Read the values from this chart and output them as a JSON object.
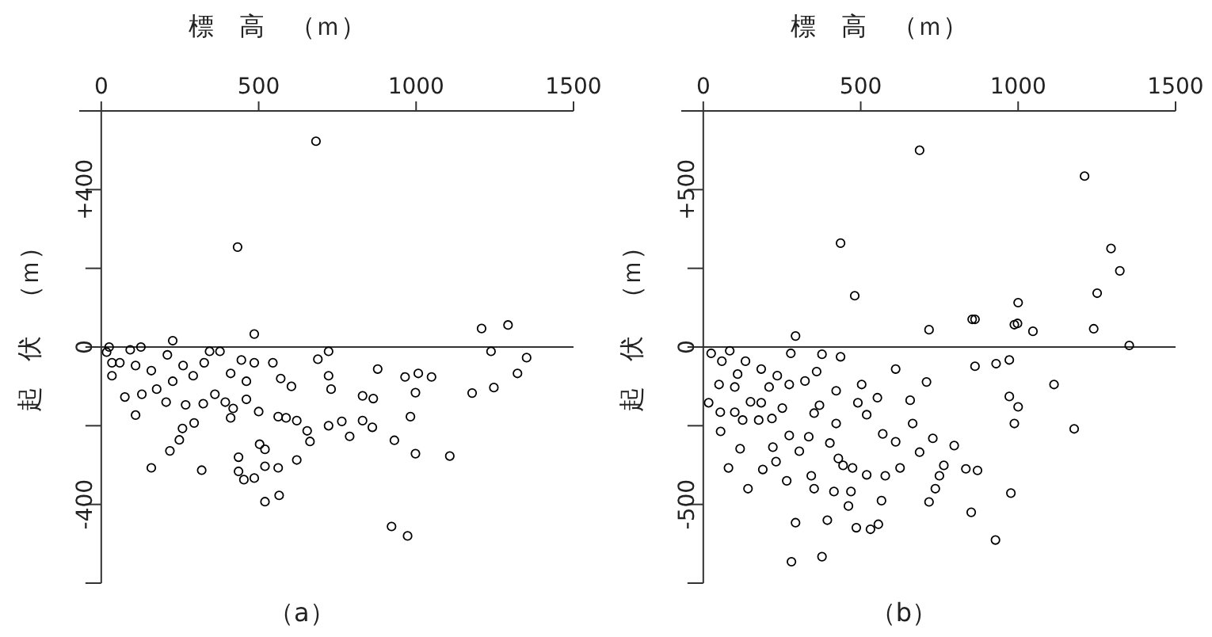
{
  "chart_data": [
    {
      "type": "scatter",
      "title": "（a）",
      "xlabel": "標　高　（ｍ）",
      "ylabel": "起　伏　（ｍ）",
      "color": "#000000",
      "marker": "circle",
      "grid": false,
      "xlim": [
        -70,
        1500
      ],
      "ylim": [
        -600,
        600
      ],
      "xticks": [
        0,
        500,
        1000,
        1500
      ],
      "yticks": [
        {
          "value": -400,
          "label": "-400"
        },
        {
          "value": -200,
          "label": null
        },
        0,
        {
          "value": 200,
          "label": null
        },
        {
          "value": 400,
          "label": "+400"
        }
      ],
      "ref_lines": [
        {
          "axis": "y",
          "value": 0
        }
      ],
      "x": [
        682,
        433,
        1208,
        1292,
        1238,
        1351,
        1322,
        1247,
        1178,
        1107,
        998,
        998,
        982,
        931,
        1049,
        1007,
        965,
        878,
        830,
        864,
        830,
        861,
        789,
        764,
        722,
        730,
        722,
        688,
        722,
        663,
        654,
        621,
        621,
        562,
        520,
        520,
        503,
        486,
        453,
        436,
        436,
        520,
        565,
        319,
        159,
        218,
        248,
        258,
        295,
        109,
        587,
        562,
        500,
        461,
        411,
        419,
        394,
        361,
        324,
        268,
        206,
        75,
        129,
        176,
        227,
        292,
        411,
        461,
        604,
        570,
        545,
        486,
        486,
        445,
        344,
        377,
        327,
        227,
        210,
        126,
        109,
        59,
        34,
        25,
        17,
        159,
        260,
        922,
        973,
        34,
        92
      ],
      "values": [
        523,
        254,
        47,
        56,
        -11,
        -27,
        -67,
        -103,
        -117,
        -277,
        -271,
        -116,
        -177,
        -237,
        -76,
        -67,
        -76,
        -56,
        -124,
        -131,
        -187,
        -204,
        -227,
        -189,
        -200,
        -107,
        -73,
        -31,
        -11,
        -240,
        -213,
        -187,
        -287,
        -307,
        -303,
        -260,
        -247,
        -333,
        -337,
        -316,
        -280,
        -393,
        -377,
        -313,
        -307,
        -264,
        -236,
        -207,
        -193,
        -173,
        -180,
        -177,
        -164,
        -133,
        -180,
        -156,
        -140,
        -120,
        -144,
        -147,
        -140,
        -127,
        -120,
        -107,
        -87,
        -73,
        -67,
        -87,
        -100,
        -80,
        -40,
        33,
        -40,
        -33,
        -11,
        -11,
        -40,
        16,
        -20,
        0,
        -47,
        -40,
        -73,
        0,
        -13,
        -60,
        -47,
        -456,
        -480,
        -40,
        -7
      ]
    },
    {
      "type": "scatter",
      "title": "（b）",
      "xlabel": "標　高　（ｍ）",
      "ylabel": "起　伏　（ｍ）",
      "color": "#000000",
      "marker": "circle",
      "grid": false,
      "xlim": [
        -70,
        1500
      ],
      "ylim": [
        -750,
        750
      ],
      "xticks": [
        0,
        500,
        1000,
        1500
      ],
      "yticks": [
        {
          "value": -500,
          "label": "-500"
        },
        {
          "value": -250,
          "label": null
        },
        0,
        {
          "value": 250,
          "label": null
        },
        {
          "value": 500,
          "label": "+500"
        }
      ],
      "ref_lines": [
        {
          "axis": "y",
          "value": 0
        }
      ],
      "x": [
        687,
        1211,
        436,
        1295,
        1323,
        481,
        1251,
        1000,
        863,
        998,
        717,
        854,
        988,
        1047,
        1240,
        1353,
        611,
        863,
        930,
        972,
        1114,
        709,
        972,
        1000,
        988,
        1178,
        503,
        553,
        491,
        519,
        657,
        665,
        422,
        422,
        352,
        369,
        360,
        323,
        273,
        235,
        184,
        278,
        377,
        436,
        293,
        570,
        611,
        729,
        797,
        687,
        764,
        834,
        871,
        750,
        737,
        717,
        851,
        928,
        977,
        625,
        578,
        519,
        474,
        444,
        429,
        402,
        335,
        305,
        273,
        221,
        231,
        189,
        117,
        80,
        142,
        265,
        343,
        352,
        415,
        469,
        461,
        566,
        394,
        293,
        377,
        280,
        486,
        531,
        556,
        55,
        54,
        100,
        125,
        176,
        218,
        251,
        209,
        150,
        100,
        50,
        17,
        109,
        84,
        25,
        59,
        134,
        184
      ],
      "values": [
        625,
        543,
        330,
        313,
        242,
        163,
        171,
        141,
        88,
        75,
        55,
        88,
        71,
        50,
        58,
        5,
        -70,
        -61,
        -53,
        -41,
        -119,
        -111,
        -157,
        -190,
        -243,
        -260,
        -119,
        -161,
        -177,
        -215,
        -169,
        -243,
        -139,
        -243,
        -210,
        -185,
        -78,
        -108,
        -119,
        -91,
        -70,
        -20,
        -23,
        -31,
        35,
        -276,
        -301,
        -290,
        -313,
        -334,
        -376,
        -387,
        -392,
        -409,
        -450,
        -492,
        -525,
        -613,
        -464,
        -384,
        -409,
        -406,
        -384,
        -376,
        -354,
        -305,
        -285,
        -331,
        -281,
        -318,
        -364,
        -389,
        -323,
        -384,
        -450,
        -425,
        -409,
        -450,
        -459,
        -459,
        -505,
        -488,
        -550,
        -558,
        -666,
        -682,
        -574,
        -579,
        -563,
        -268,
        -207,
        -207,
        -232,
        -232,
        -227,
        -194,
        -127,
        -174,
        -127,
        -119,
        -177,
        -86,
        -12,
        -20,
        -45,
        -45,
        -177
      ]
    }
  ]
}
